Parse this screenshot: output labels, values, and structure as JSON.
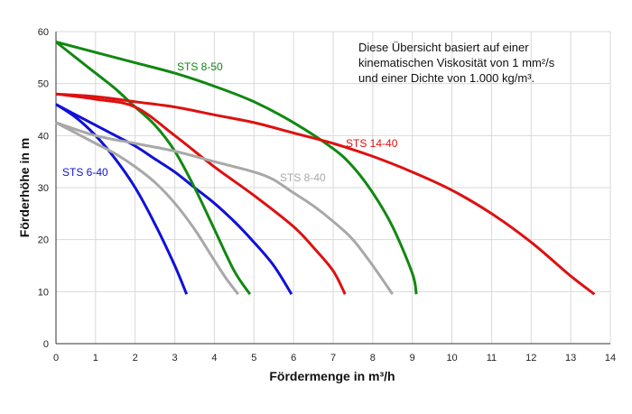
{
  "chart_data": {
    "type": "line",
    "xlabel": "Fördermenge in m³/h",
    "ylabel": "Förderhöhe in m",
    "xlim": [
      0,
      14
    ],
    "ylim": [
      0,
      60
    ],
    "xticks": [
      0,
      1,
      2,
      3,
      4,
      5,
      6,
      7,
      8,
      9,
      10,
      11,
      12,
      13,
      14
    ],
    "yticks": [
      0,
      10,
      20,
      30,
      40,
      50,
      60
    ],
    "grid": true,
    "annotation": [
      "Diese Übersicht basiert auf einer",
      "kinematischen Viskosität von 1 mm²/s",
      "und einer Dichte von 1.000 kg/m³."
    ],
    "series": [
      {
        "name": "STS 6-40",
        "color": "#1010d8",
        "points": [
          [
            0,
            46
          ],
          [
            0.5,
            43.5
          ],
          [
            1,
            40
          ],
          [
            1.5,
            35.5
          ],
          [
            2,
            30
          ],
          [
            2.5,
            23
          ],
          [
            3,
            15
          ],
          [
            3.3,
            9.5
          ]
        ]
      },
      {
        "name": "",
        "color": "#1010d8",
        "points": [
          [
            0,
            46
          ],
          [
            0.5,
            44
          ],
          [
            1,
            42
          ],
          [
            1.5,
            40
          ],
          [
            2,
            38
          ],
          [
            2.5,
            35.5
          ],
          [
            3,
            33
          ],
          [
            3.5,
            30
          ],
          [
            4,
            27
          ],
          [
            4.5,
            23.5
          ],
          [
            5,
            19.5
          ],
          [
            5.5,
            15
          ],
          [
            5.95,
            9.5
          ]
        ]
      },
      {
        "name": "STS 8-50",
        "color": "#118811",
        "points": [
          [
            0,
            58
          ],
          [
            0.5,
            55
          ],
          [
            1,
            52
          ],
          [
            1.5,
            49
          ],
          [
            2,
            45.5
          ],
          [
            2.5,
            42
          ],
          [
            3,
            37
          ],
          [
            3.5,
            30
          ],
          [
            4,
            22
          ],
          [
            4.5,
            14
          ],
          [
            4.9,
            9.5
          ]
        ]
      },
      {
        "name": "",
        "color": "#118811",
        "points": [
          [
            0,
            58
          ],
          [
            1,
            56
          ],
          [
            2,
            54
          ],
          [
            3,
            52
          ],
          [
            4,
            49.5
          ],
          [
            5,
            46.5
          ],
          [
            6,
            42.5
          ],
          [
            7,
            37.5
          ],
          [
            7.5,
            34
          ],
          [
            8,
            29
          ],
          [
            8.5,
            22.5
          ],
          [
            9,
            13.5
          ],
          [
            9.1,
            9.5
          ]
        ]
      },
      {
        "name": "STS 14-40",
        "color": "#dd1111",
        "points": [
          [
            0,
            48
          ],
          [
            1,
            47
          ],
          [
            2,
            45.5
          ],
          [
            3,
            40
          ],
          [
            4,
            34
          ],
          [
            5,
            28.5
          ],
          [
            6,
            22.5
          ],
          [
            6.5,
            18.5
          ],
          [
            7,
            14
          ],
          [
            7.3,
            9.5
          ]
        ]
      },
      {
        "name": "",
        "color": "#dd1111",
        "points": [
          [
            0,
            48
          ],
          [
            1,
            47.5
          ],
          [
            2,
            46.5
          ],
          [
            3,
            45.5
          ],
          [
            4,
            44
          ],
          [
            5,
            42.5
          ],
          [
            6,
            40.5
          ],
          [
            7,
            38.5
          ],
          [
            8,
            36
          ],
          [
            9,
            33
          ],
          [
            10,
            29.5
          ],
          [
            11,
            25
          ],
          [
            12,
            19.5
          ],
          [
            13,
            13
          ],
          [
            13.6,
            9.5
          ]
        ]
      },
      {
        "name": "",
        "color": "#a8a8a8",
        "points": [
          [
            0,
            42.5
          ],
          [
            0.5,
            40.5
          ],
          [
            1,
            38.5
          ],
          [
            1.5,
            36.5
          ],
          [
            2,
            34
          ],
          [
            2.5,
            31
          ],
          [
            3,
            27
          ],
          [
            3.5,
            22
          ],
          [
            4,
            16
          ],
          [
            4.3,
            12.5
          ],
          [
            4.6,
            9.5
          ]
        ]
      },
      {
        "name": "STS 8-40",
        "color": "#a8a8a8",
        "points": [
          [
            0,
            42.5
          ],
          [
            1,
            40
          ],
          [
            2,
            38.5
          ],
          [
            3,
            37
          ],
          [
            4,
            35
          ],
          [
            5,
            33
          ],
          [
            5.5,
            31.5
          ],
          [
            6,
            29
          ],
          [
            6.5,
            26.5
          ],
          [
            7,
            23.5
          ],
          [
            7.5,
            20
          ],
          [
            8,
            15
          ],
          [
            8.5,
            9.5
          ]
        ]
      }
    ],
    "labels": [
      {
        "text": "STS 6-40",
        "color": "#1010d8"
      },
      {
        "text": "STS 8-50",
        "color": "#118811"
      },
      {
        "text": "STS 14-40",
        "color": "#dd1111"
      },
      {
        "text": "STS 8-40",
        "color": "#a8a8a8"
      }
    ]
  }
}
